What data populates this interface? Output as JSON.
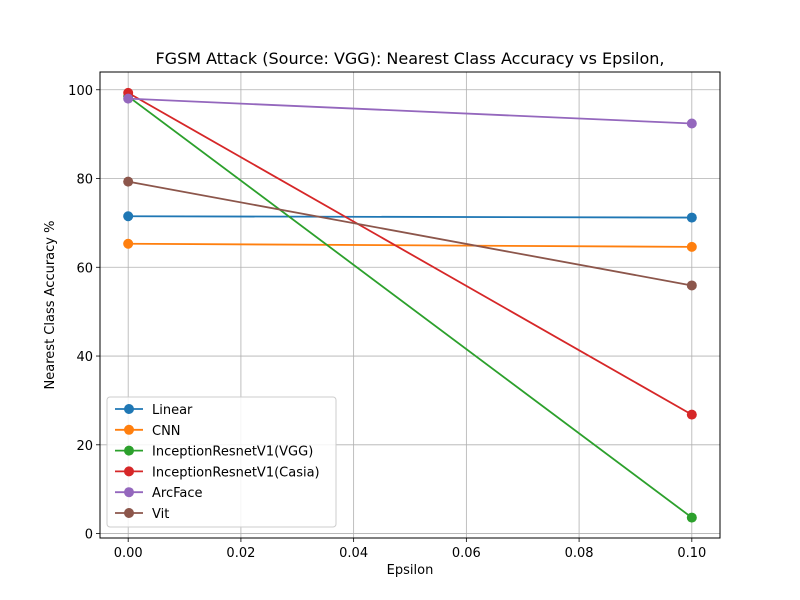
{
  "chart_data": {
    "type": "line",
    "title": "FGSM Attack (Source: VGG): Nearest Class Accuracy vs Epsilon,",
    "xlabel": "Epsilon",
    "ylabel": "Nearest Class Accuracy %",
    "x": [
      0.0,
      0.1
    ],
    "xlim": [
      -0.005,
      0.105
    ],
    "ylim": [
      -1,
      104
    ],
    "xticks": [
      0.0,
      0.02,
      0.04,
      0.06,
      0.08,
      0.1
    ],
    "xtick_labels": [
      "0.00",
      "0.02",
      "0.04",
      "0.06",
      "0.08",
      "0.10"
    ],
    "yticks": [
      0,
      20,
      40,
      60,
      80,
      100
    ],
    "ytick_labels": [
      "0",
      "20",
      "40",
      "60",
      "80",
      "100"
    ],
    "grid": true,
    "legend_position": "lower-left",
    "series": [
      {
        "name": "Linear",
        "color": "#1f77b4",
        "values": [
          71.5,
          71.2
        ]
      },
      {
        "name": "CNN",
        "color": "#ff7f0e",
        "values": [
          65.3,
          64.6
        ]
      },
      {
        "name": "InceptionResnetV1(VGG)",
        "color": "#2ca02c",
        "values": [
          98.5,
          3.6
        ]
      },
      {
        "name": "InceptionResnetV1(Casia)",
        "color": "#d62728",
        "values": [
          99.3,
          26.8
        ]
      },
      {
        "name": "ArcFace",
        "color": "#9467bd",
        "values": [
          98.0,
          92.4
        ]
      },
      {
        "name": "Vit",
        "color": "#8c564b",
        "values": [
          79.3,
          55.9
        ]
      }
    ]
  }
}
